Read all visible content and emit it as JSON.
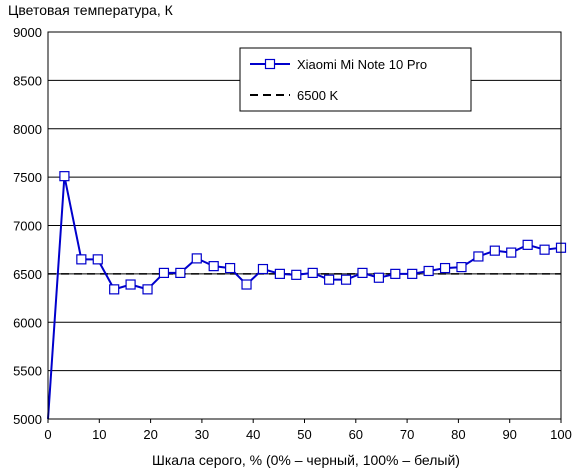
{
  "chart_data": {
    "type": "line",
    "ylabel": "Цветовая температура, К",
    "xlabel": "Шкала серого, % (0% – черный, 100% – белый)",
    "xlim": [
      0,
      100
    ],
    "ylim": [
      5000,
      9000
    ],
    "xticks": [
      0,
      10,
      20,
      30,
      40,
      50,
      60,
      70,
      80,
      90,
      100
    ],
    "yticks": [
      5000,
      5500,
      6000,
      6500,
      7000,
      7500,
      8000,
      8500,
      9000
    ],
    "grid": "horizontal",
    "legend_position": "top-right",
    "series": [
      {
        "name": "Xiaomi Mi Note 10 Pro",
        "color": "#0000cc",
        "marker": "square",
        "x": [
          0,
          3.2,
          6.5,
          9.7,
          12.9,
          16.1,
          19.4,
          22.6,
          25.8,
          29.0,
          32.3,
          35.5,
          38.7,
          41.9,
          45.2,
          48.4,
          51.6,
          54.8,
          58.1,
          61.3,
          64.5,
          67.7,
          71.0,
          74.2,
          77.4,
          80.6,
          83.9,
          87.1,
          90.3,
          93.5,
          96.8,
          100
        ],
        "y": [
          5000,
          7510,
          6650,
          6650,
          6340,
          6390,
          6340,
          6510,
          6510,
          6660,
          6580,
          6560,
          6390,
          6550,
          6500,
          6490,
          6510,
          6440,
          6440,
          6510,
          6460,
          6500,
          6500,
          6530,
          6560,
          6570,
          6680,
          6740,
          6720,
          6800,
          6750,
          6770
        ],
        "markers_from_index": 1
      },
      {
        "name": "6500 K",
        "color": "#000000",
        "style": "dashed",
        "x": [
          0,
          100
        ],
        "y": [
          6500,
          6500
        ]
      }
    ]
  }
}
